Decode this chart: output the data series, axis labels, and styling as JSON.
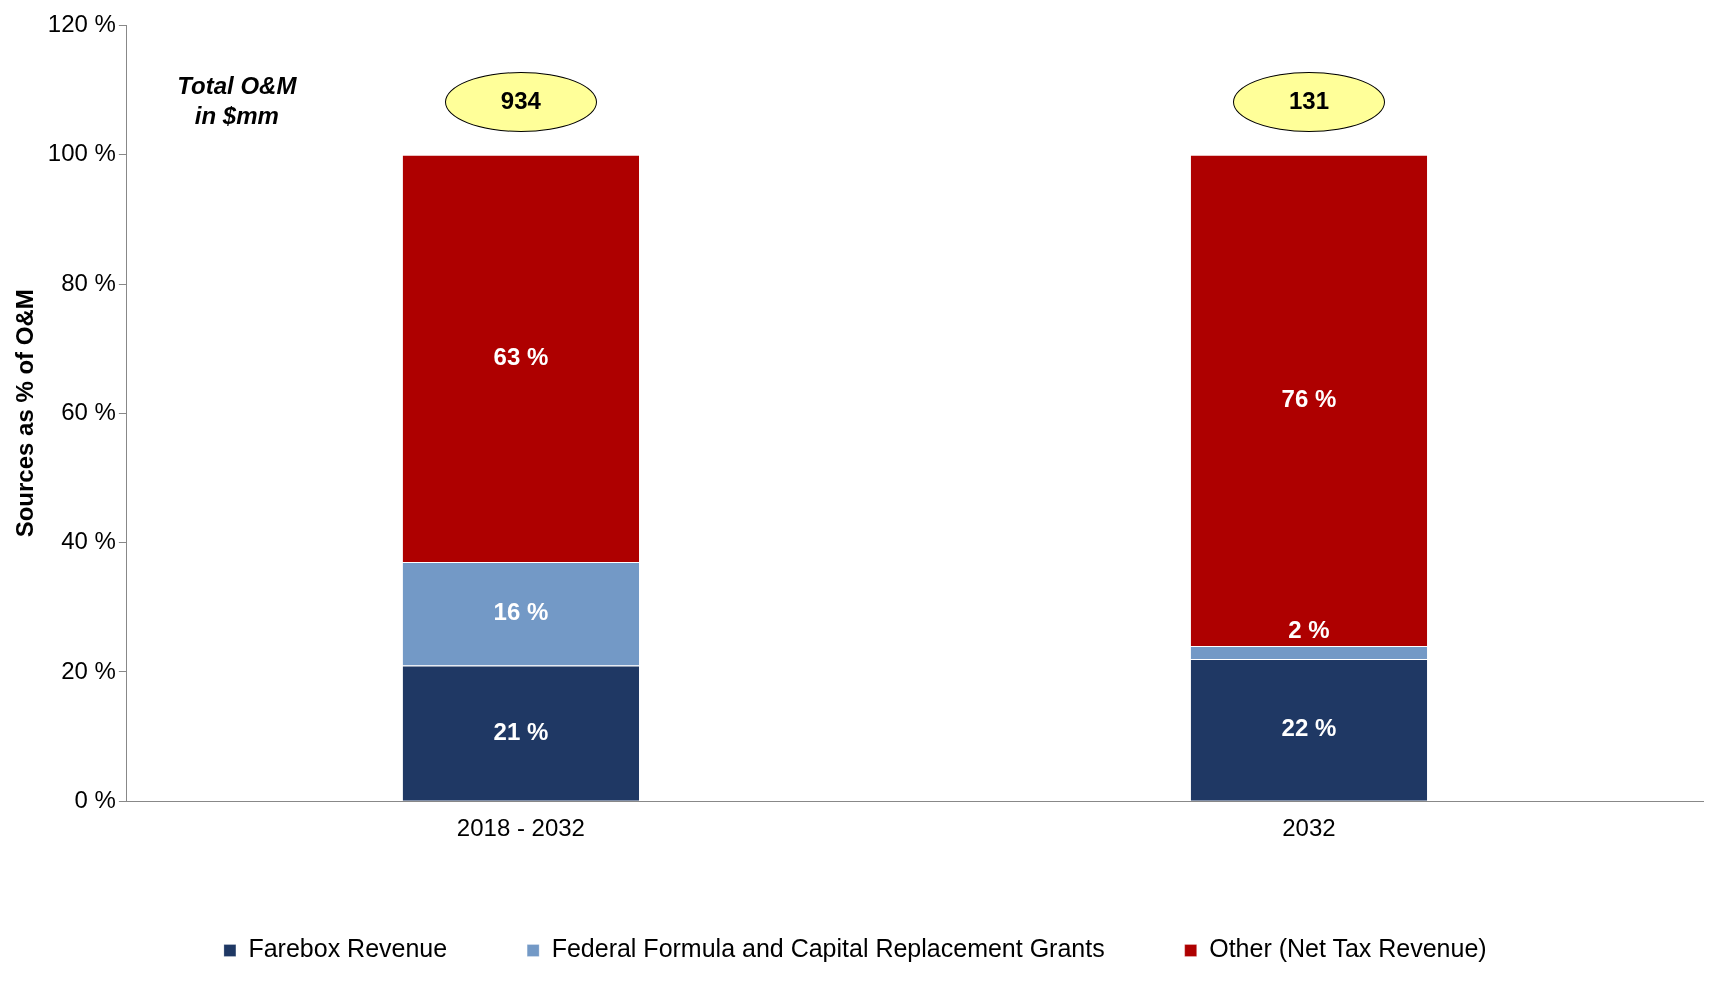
{
  "chart_data": {
    "type": "bar",
    "ylabel": "Sources as % of O&M",
    "categories": [
      "2018 - 2032",
      "2032"
    ],
    "stacked": true,
    "series": [
      {
        "name": "Farebox Revenue",
        "color": "#1f3864",
        "values": [
          21,
          22
        ],
        "value_labels": [
          "21 %",
          "22 %"
        ]
      },
      {
        "name": "Federal Formula and Capital Replacement Grants",
        "color": "#7399c6",
        "values": [
          16,
          2
        ],
        "value_labels": [
          "16 %",
          "2 %"
        ]
      },
      {
        "name": "Other (Net Tax Revenue)",
        "color": "#ae0000",
        "values": [
          63,
          76
        ],
        "value_labels": [
          "63 %",
          "76 %"
        ]
      }
    ],
    "annotations": [
      "Total O&M\nin $mm",
      "934",
      "131"
    ],
    "ylim": [
      0,
      120
    ],
    "yticks": [
      {
        "value": 0,
        "label": "0 %"
      },
      {
        "value": 20,
        "label": "20 %"
      },
      {
        "value": 40,
        "label": "40 %"
      },
      {
        "value": 60,
        "label": "60 %"
      },
      {
        "value": 80,
        "label": "80 %"
      },
      {
        "value": 100,
        "label": "100 %"
      },
      {
        "value": 120,
        "label": "120 %"
      }
    ],
    "grid": false,
    "legend": "bottom"
  }
}
